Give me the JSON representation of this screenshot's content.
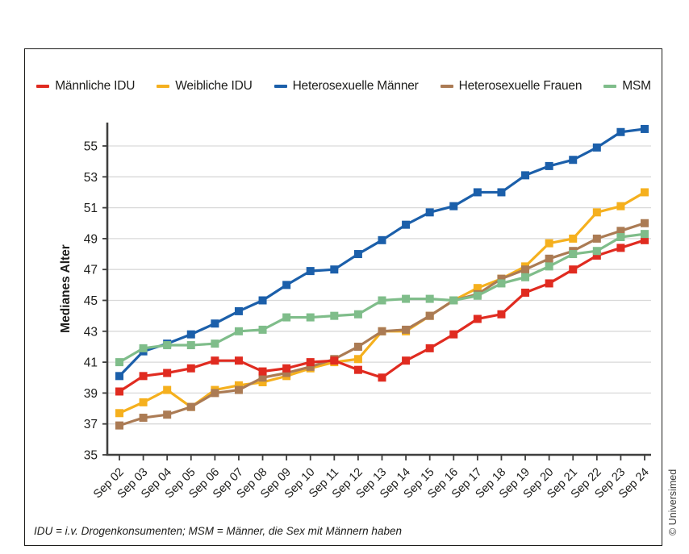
{
  "figure": {
    "footnote": "IDU = i.v. Drogenkonsumenten; MSM = Männer, die Sex mit Männern haben",
    "copyright": "© Universimed"
  },
  "chart_data": {
    "type": "line",
    "title": "",
    "xlabel": "",
    "ylabel": "Medianes Alter",
    "ylim": [
      35,
      56.5
    ],
    "yticks": [
      35,
      37,
      39,
      41,
      43,
      45,
      47,
      49,
      51,
      53,
      55
    ],
    "grid": true,
    "legend_position": "top",
    "marker": "square",
    "categories": [
      "Sep 02",
      "Sep 03",
      "Sep 04",
      "Sep 05",
      "Sep 06",
      "Sep 07",
      "Sep 08",
      "Sep 09",
      "Sep 10",
      "Sep 11",
      "Sep 12",
      "Sep 13",
      "Sep 14",
      "Sep 15",
      "Sep 16",
      "Sep 17",
      "Sep 18",
      "Sep 19",
      "Sep 20",
      "Sep 21",
      "Sep 22",
      "Sep 23",
      "Sep 24"
    ],
    "series": [
      {
        "name": "Männliche IDU",
        "color": "#e02b20",
        "values": [
          39.1,
          40.1,
          40.3,
          40.6,
          41.1,
          41.1,
          40.4,
          40.6,
          41.0,
          41.1,
          40.5,
          40.0,
          41.1,
          41.9,
          42.8,
          43.8,
          44.1,
          45.5,
          46.1,
          47.0,
          47.9,
          48.4,
          48.9
        ]
      },
      {
        "name": "Weibliche IDU",
        "color": "#f5b01e",
        "values": [
          37.7,
          38.4,
          39.2,
          38.1,
          39.2,
          39.5,
          39.7,
          40.1,
          40.6,
          41.0,
          41.2,
          43.0,
          43.0,
          44.0,
          45.0,
          45.8,
          46.4,
          47.2,
          48.7,
          49.0,
          50.7,
          51.1,
          52.0
        ]
      },
      {
        "name": "Heterosexuelle Männer",
        "color": "#1b5faa",
        "values": [
          40.1,
          41.7,
          42.2,
          42.8,
          43.5,
          44.3,
          45.0,
          46.0,
          46.9,
          47.0,
          48.0,
          48.9,
          49.9,
          50.7,
          51.1,
          52.0,
          52.0,
          53.1,
          53.7,
          54.1,
          54.9,
          55.9,
          56.1
        ]
      },
      {
        "name": "Heterosexuelle Frauen",
        "color": "#ab7b54",
        "values": [
          36.9,
          37.4,
          37.6,
          38.1,
          39.0,
          39.2,
          40.0,
          40.3,
          40.7,
          41.2,
          42.0,
          43.0,
          43.1,
          44.0,
          45.0,
          45.4,
          46.4,
          47.0,
          47.7,
          48.2,
          49.0,
          49.5,
          50.0
        ]
      },
      {
        "name": "MSM",
        "color": "#7fbd8a",
        "values": [
          41.0,
          41.9,
          42.1,
          42.1,
          42.2,
          43.0,
          43.1,
          43.9,
          43.9,
          44.0,
          44.1,
          45.0,
          45.1,
          45.1,
          45.0,
          45.3,
          46.1,
          46.5,
          47.2,
          48.0,
          48.2,
          49.1,
          49.3
        ]
      }
    ]
  }
}
